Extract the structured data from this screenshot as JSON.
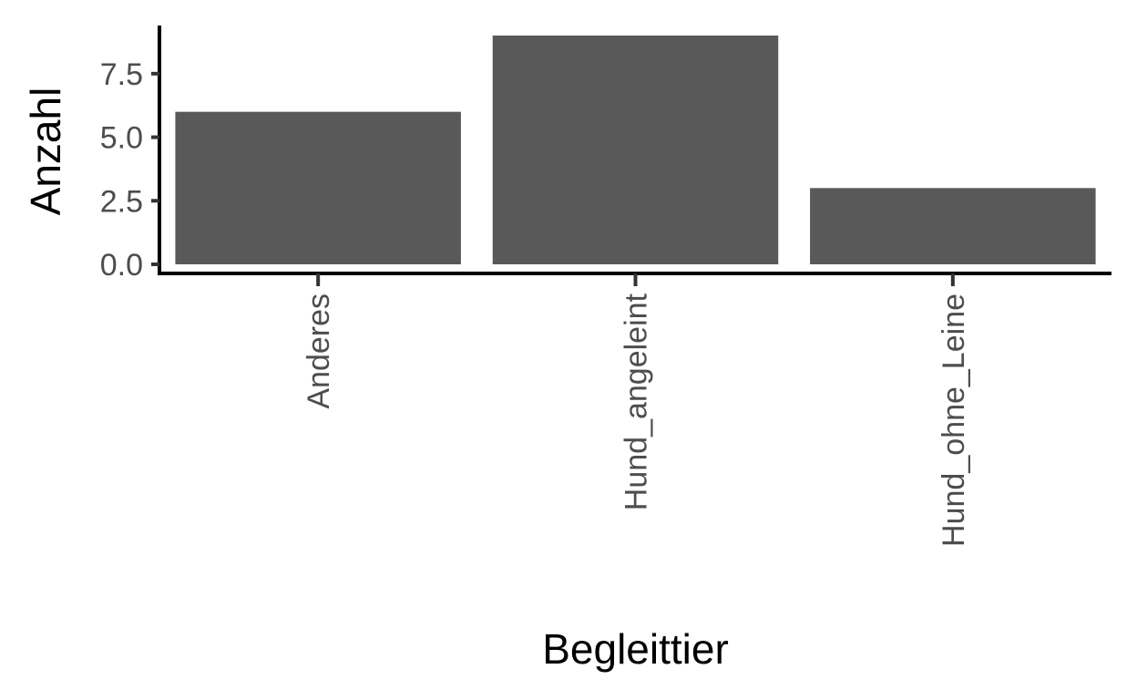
{
  "chart_data": {
    "type": "bar",
    "categories": [
      "Anderes",
      "Hund_angeleint",
      "Hund_ohne_Leine"
    ],
    "values": [
      6,
      9,
      3
    ],
    "xlabel": "Begleittier",
    "ylabel": "Anzahl",
    "ylim": [
      0,
      9
    ],
    "yticks": [
      "0.0",
      "2.5",
      "5.0",
      "7.5"
    ],
    "ytick_values": [
      0,
      2.5,
      5,
      7.5
    ],
    "grid": false,
    "bar_color": "#595959",
    "x_tick_label_rotation": "vertical"
  }
}
